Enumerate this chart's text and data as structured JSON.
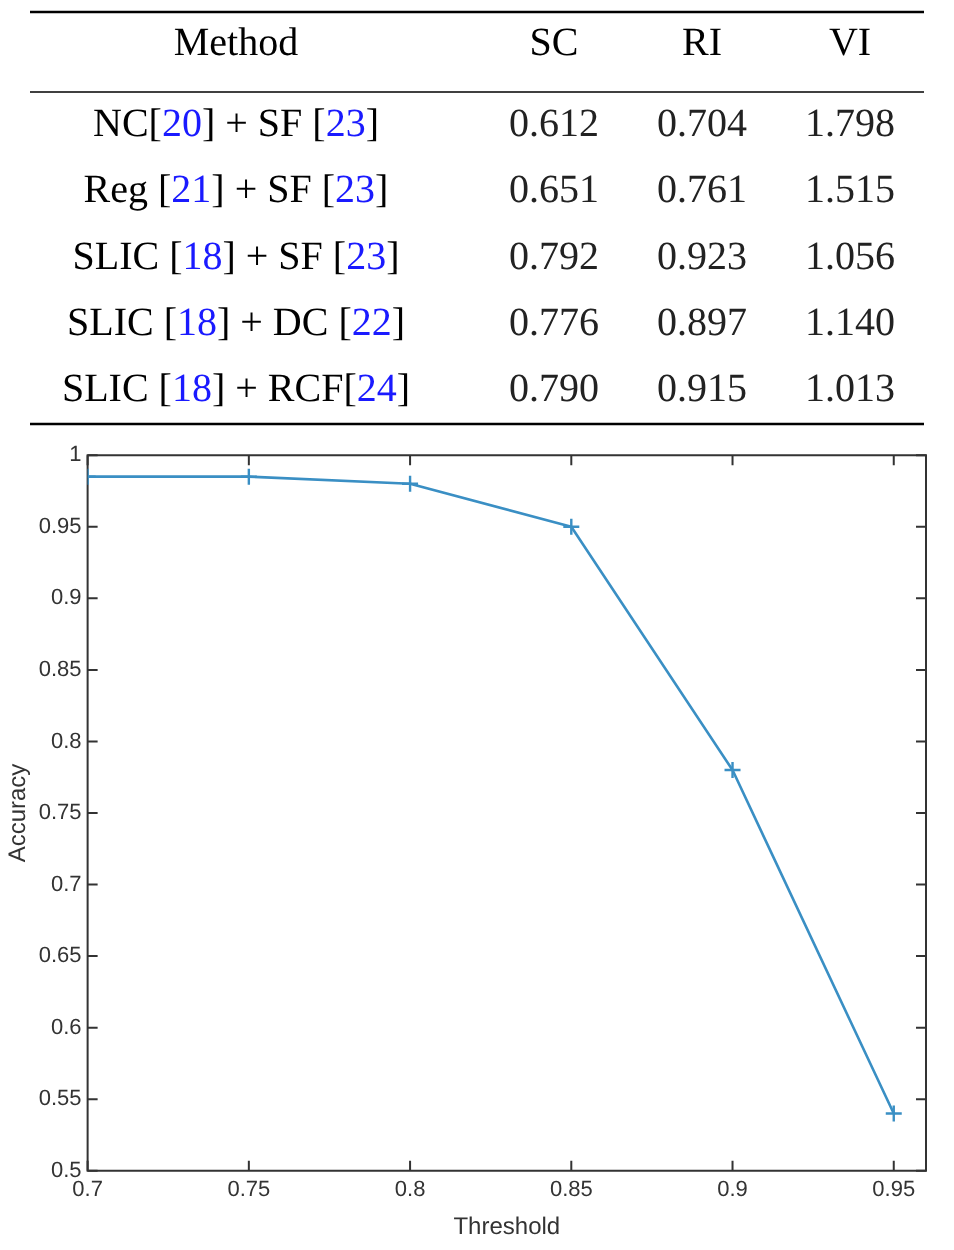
{
  "chart_data": [
    {
      "type": "heatmap",
      "ylabel": "Method",
      "categories": [
        "SC",
        "RI",
        "VI"
      ],
      "y_categories": [
        "NC[20] + SF [23]",
        "Reg [21] + SF [23]",
        "SLIC [18] + SF [23]",
        "SLIC [18] + DC [22]",
        "SLIC [18] + RCF[24]"
      ],
      "cells": [
        [
          0.612,
          0.704,
          1.798
        ],
        [
          0.651,
          0.761,
          1.515
        ],
        [
          0.792,
          0.923,
          1.056
        ],
        [
          0.776,
          0.897,
          1.14
        ],
        [
          0.79,
          0.915,
          1.013
        ]
      ],
      "cell_labels": [
        [
          "0.612",
          "0.704",
          "1.798"
        ],
        [
          "0.651",
          "0.761",
          "1.515"
        ],
        [
          "0.792",
          "0.923",
          "1.056"
        ],
        [
          "0.776",
          "0.897",
          "1.140"
        ],
        [
          "0.790",
          "0.915",
          "1.013"
        ]
      ]
    },
    {
      "type": "line",
      "xlabel": "Threshold",
      "ylabel": "Accuracy",
      "x": [
        0.7,
        0.75,
        0.8,
        0.85,
        0.9,
        0.95
      ],
      "series": [
        {
          "color": "#3a8fc4",
          "values": [
            0.985,
            0.985,
            0.98,
            0.95,
            0.78,
            0.54
          ]
        }
      ],
      "xlim": [
        0.7,
        0.96
      ],
      "xticks": [
        0.7,
        0.75,
        0.8,
        0.85,
        0.9,
        0.95
      ],
      "ylim": [
        0.5,
        1
      ],
      "yticks": [
        0.5,
        0.55,
        0.6,
        0.65,
        0.7,
        0.75,
        0.8,
        0.85,
        0.9,
        0.95,
        1
      ],
      "grid": false,
      "marker": "cross",
      "line_style": "solid"
    }
  ]
}
